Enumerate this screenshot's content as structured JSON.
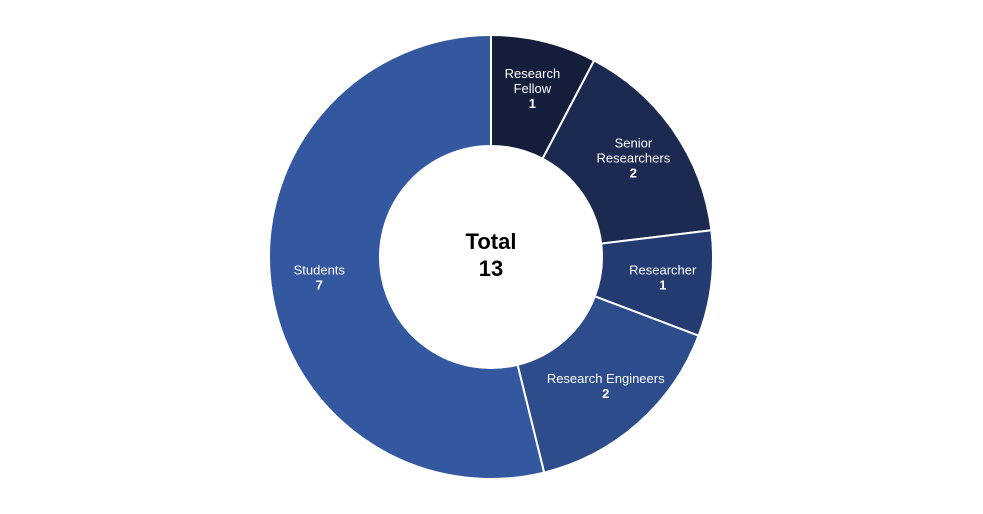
{
  "chart_data": {
    "type": "pie",
    "style": "donut",
    "center_label": "Total",
    "center_value": "13",
    "slices": [
      {
        "label": [
          "Research",
          "Fellow"
        ],
        "value": 1,
        "color": "#141e3a"
      },
      {
        "label": [
          "Senior",
          "Researchers"
        ],
        "value": 2,
        "color": "#1c2a52"
      },
      {
        "label": [
          "Researcher"
        ],
        "value": 1,
        "color": "#243b72"
      },
      {
        "label": [
          "Research Engineers"
        ],
        "value": 2,
        "color": "#2c4c8c"
      },
      {
        "label": [
          "Students"
        ],
        "value": 7,
        "color": "#3458a0"
      }
    ]
  }
}
